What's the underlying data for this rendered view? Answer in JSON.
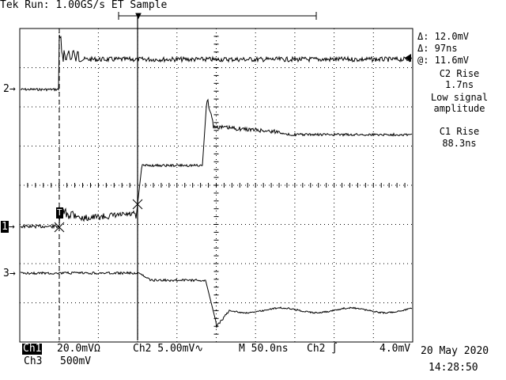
{
  "header": {
    "status": "Tek Run: 1.00GS/s ET Sample"
  },
  "markers": {
    "ch2": "2",
    "ch1": "1",
    "ch3": "3",
    "trigger_T": "T"
  },
  "readouts": {
    "delta_v": "Δ: 12.0mV",
    "delta_t": "Δ: 97ns",
    "at_v": "@: 11.6mV",
    "c2_rise_label": "C2 Rise",
    "c2_rise_value": "1.7ns",
    "low_signal_1": "Low signal",
    "low_signal_2": "amplitude",
    "c1_rise_label": "C1 Rise",
    "c1_rise_value": "88.3ns"
  },
  "footer": {
    "ch1_badge": "Ch1",
    "ch1_scale": "20.0mVΩ",
    "ch2_scale": "Ch2  5.00mV∿",
    "timebase": "M 50.0ns",
    "trigger": "Ch2 ∫",
    "trigger_level": "4.0mV",
    "ch3": "Ch3",
    "ch3_scale": "500mV",
    "date": "20 May 2020",
    "time": "14:28:50"
  }
}
